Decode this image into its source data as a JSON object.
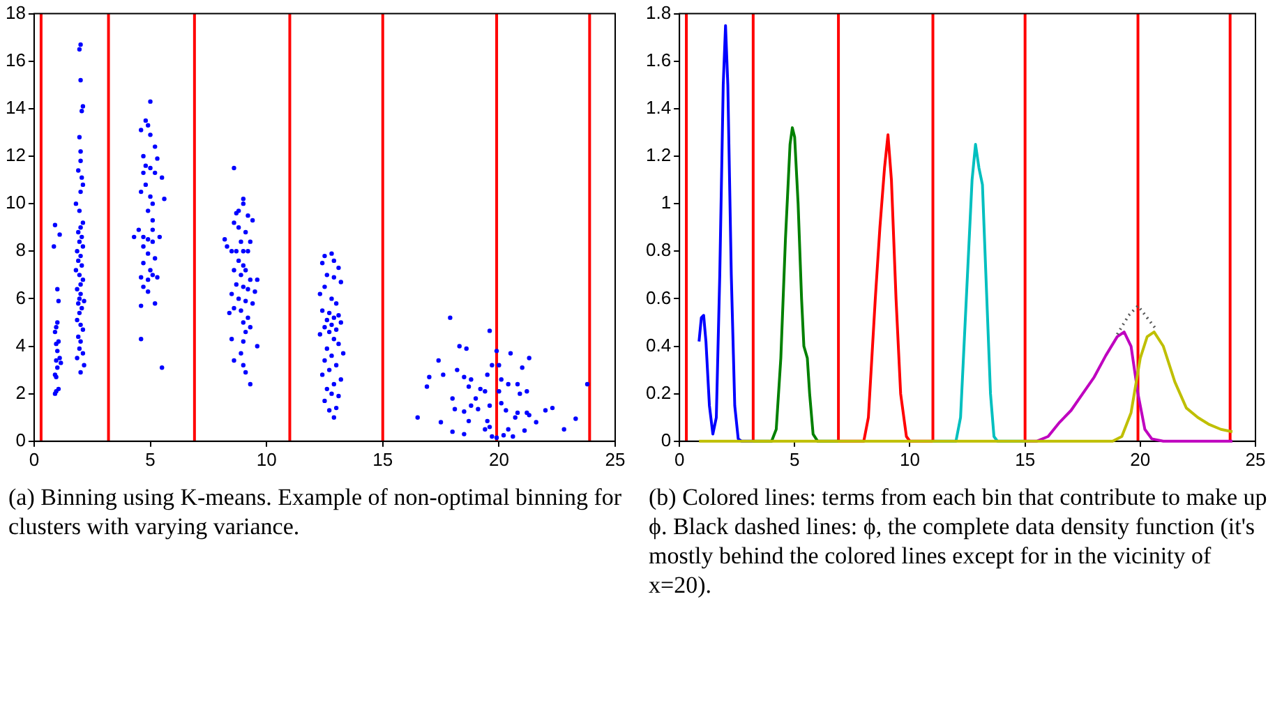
{
  "chart_data": [
    {
      "type": "scatter",
      "xlim": [
        0,
        25
      ],
      "ylim": [
        0,
        18
      ],
      "xticks": [
        0,
        5,
        10,
        15,
        20,
        25
      ],
      "yticks": [
        0,
        2,
        4,
        6,
        8,
        10,
        12,
        14,
        16,
        18
      ],
      "grid": false,
      "legend": false,
      "marker": "circle",
      "series": [
        {
          "color": "#0000ff",
          "x": [
            0.9,
            1.1,
            0.85,
            1.0,
            1.05,
            1.0,
            0.95,
            0.9,
            1.05,
            0.95,
            1.0,
            1.1,
            0.95,
            1.15,
            1.0,
            0.9,
            0.95,
            1.05,
            0.95,
            0.9,
            2.0,
            1.95,
            2.0,
            2.1,
            2.05,
            1.95,
            2.0,
            2.0,
            1.9,
            2.05,
            2.1,
            2.0,
            1.8,
            1.95,
            2.1,
            2.0,
            1.9,
            2.05,
            1.95,
            2.1,
            1.85,
            2.0,
            1.9,
            2.05,
            1.8,
            1.95,
            2.1,
            2.0,
            1.85,
            2.0,
            1.95,
            2.15,
            1.9,
            2.05,
            1.95,
            1.85,
            2.0,
            2.1,
            1.9,
            2.0,
            1.95,
            2.1,
            1.85,
            2.15,
            2.0,
            4.6,
            4.8,
            4.9,
            5.0,
            5.0,
            5.2,
            4.7,
            5.3,
            4.8,
            5.0,
            4.7,
            5.2,
            5.5,
            4.8,
            5.0,
            4.6,
            5.1,
            5.6,
            4.9,
            5.1,
            4.5,
            5.1,
            4.3,
            4.7,
            4.9,
            5.1,
            5.4,
            4.7,
            4.9,
            5.2,
            4.7,
            5.0,
            5.1,
            4.6,
            4.9,
            5.3,
            4.7,
            4.9,
            4.6,
            5.2,
            4.6,
            5.5,
            8.6,
            9.0,
            9.0,
            8.8,
            8.7,
            9.2,
            8.6,
            9.4,
            8.8,
            9.1,
            8.2,
            8.9,
            9.3,
            8.3,
            8.5,
            8.7,
            9.0,
            9.2,
            8.8,
            9.0,
            8.6,
            9.1,
            8.9,
            9.3,
            9.6,
            8.7,
            9.0,
            9.2,
            9.5,
            8.5,
            8.8,
            9.1,
            9.4,
            8.6,
            8.9,
            8.4,
            9.2,
            9.0,
            9.3,
            9.1,
            8.5,
            9.0,
            8.9,
            9.6,
            8.6,
            9.0,
            9.1,
            9.3,
            12.8,
            12.5,
            12.9,
            12.4,
            13.1,
            12.6,
            12.9,
            13.2,
            12.5,
            12.3,
            12.8,
            13.0,
            12.4,
            12.7,
            13.1,
            12.9,
            12.6,
            13.2,
            12.8,
            12.5,
            13.0,
            12.7,
            12.3,
            12.9,
            13.1,
            12.6,
            13.3,
            12.8,
            12.5,
            13.0,
            12.7,
            12.4,
            13.2,
            12.9,
            12.6,
            12.8,
            13.1,
            12.5,
            13.0,
            12.7,
            12.9,
            17.9,
            19.6,
            18.3,
            18.6,
            17.4,
            19.9,
            20.5,
            21.3,
            19.7,
            20.0,
            21.0,
            17.0,
            17.6,
            18.2,
            18.5,
            18.8,
            19.5,
            20.1,
            20.4,
            20.8,
            16.9,
            18.7,
            19.2,
            19.4,
            20.0,
            21.2,
            20.9,
            18.0,
            19.0,
            19.6,
            20.1,
            18.8,
            18.1,
            18.5,
            19.1,
            20.3,
            20.8,
            21.2,
            22.0,
            22.3,
            16.5,
            17.5,
            18.7,
            19.5,
            20.7,
            21.3,
            21.6,
            23.3,
            23.8,
            18.0,
            18.5,
            19.4,
            19.6,
            19.7,
            19.9,
            20.2,
            20.6,
            21.1,
            22.8,
            20.4
          ],
          "values": [
            9.1,
            8.7,
            8.2,
            6.4,
            5.9,
            5.0,
            4.8,
            4.6,
            4.2,
            4.1,
            3.8,
            3.5,
            3.4,
            3.3,
            3.1,
            2.8,
            2.7,
            2.2,
            2.1,
            2.0,
            16.7,
            16.5,
            15.2,
            14.1,
            13.9,
            12.8,
            12.2,
            11.8,
            11.4,
            11.1,
            10.8,
            10.5,
            10.0,
            9.7,
            9.2,
            9.0,
            8.8,
            8.6,
            8.4,
            8.2,
            8.0,
            7.8,
            7.6,
            7.4,
            7.2,
            7.0,
            6.8,
            6.6,
            6.4,
            6.2,
            6.0,
            5.9,
            5.8,
            5.6,
            5.4,
            5.1,
            4.9,
            4.7,
            4.4,
            4.2,
            3.9,
            3.7,
            3.5,
            3.2,
            2.9,
            13.1,
            13.5,
            13.3,
            14.3,
            12.9,
            12.4,
            12.0,
            11.9,
            11.6,
            11.5,
            11.3,
            11.3,
            11.1,
            10.8,
            10.3,
            10.5,
            10.0,
            10.2,
            9.7,
            9.3,
            8.9,
            8.9,
            8.6,
            8.6,
            8.5,
            8.4,
            8.6,
            8.2,
            7.9,
            7.7,
            7.5,
            7.2,
            7.0,
            6.9,
            6.8,
            6.9,
            6.5,
            6.3,
            5.7,
            5.8,
            4.3,
            3.1,
            11.5,
            10.2,
            10.0,
            9.7,
            9.6,
            9.5,
            9.2,
            9.3,
            9.0,
            8.8,
            8.5,
            8.4,
            8.4,
            8.2,
            8.0,
            8.0,
            8.0,
            8.0,
            7.6,
            7.4,
            7.2,
            7.2,
            7.0,
            6.8,
            6.8,
            6.6,
            6.5,
            6.4,
            6.3,
            6.2,
            6.0,
            5.9,
            5.8,
            5.6,
            5.5,
            5.4,
            5.2,
            5.0,
            4.8,
            4.6,
            4.3,
            4.2,
            3.7,
            4.0,
            3.4,
            3.2,
            2.9,
            2.4,
            7.9,
            7.8,
            7.6,
            7.5,
            7.3,
            7.0,
            6.9,
            6.7,
            6.5,
            6.2,
            6.0,
            5.8,
            5.5,
            5.4,
            5.3,
            5.2,
            5.1,
            5.0,
            4.9,
            4.8,
            4.7,
            4.6,
            4.5,
            4.3,
            4.1,
            3.9,
            3.7,
            3.6,
            3.4,
            3.2,
            3.0,
            2.8,
            2.6,
            2.4,
            2.2,
            2.0,
            1.9,
            1.7,
            1.4,
            1.3,
            1.0,
            5.2,
            4.65,
            4.0,
            3.9,
            3.4,
            3.8,
            3.7,
            3.5,
            3.2,
            3.2,
            3.1,
            2.7,
            2.8,
            3.0,
            2.7,
            2.6,
            2.8,
            2.6,
            2.4,
            2.4,
            2.3,
            2.3,
            2.2,
            2.1,
            2.1,
            2.1,
            2.0,
            1.8,
            1.8,
            1.5,
            1.6,
            1.5,
            1.35,
            1.25,
            1.35,
            1.3,
            1.2,
            1.2,
            1.3,
            1.4,
            1.0,
            0.8,
            0.85,
            0.85,
            1.0,
            1.1,
            0.8,
            0.95,
            2.4,
            0.4,
            0.3,
            0.5,
            0.6,
            0.2,
            0.15,
            0.25,
            0.2,
            0.45,
            0.5,
            0.5
          ]
        }
      ],
      "ref_lines": [
        {
          "axis": "x",
          "value": 0.3,
          "color": "#ff0000"
        },
        {
          "axis": "x",
          "value": 3.2,
          "color": "#ff0000"
        },
        {
          "axis": "x",
          "value": 6.9,
          "color": "#ff0000"
        },
        {
          "axis": "x",
          "value": 11,
          "color": "#ff0000"
        },
        {
          "axis": "x",
          "value": 15,
          "color": "#ff0000"
        },
        {
          "axis": "x",
          "value": 19.9,
          "color": "#ff0000"
        },
        {
          "axis": "x",
          "value": 23.9,
          "color": "#ff0000"
        }
      ],
      "annotations": [
        "(a) Binning using K-means. Example of non-optimal binning for clusters with varying variance."
      ]
    },
    {
      "type": "line",
      "xlim": [
        0,
        25
      ],
      "ylim": [
        0,
        1.8
      ],
      "xticks": [
        0,
        5,
        10,
        15,
        20,
        25
      ],
      "yticks": [
        0,
        0.2,
        0.4,
        0.6,
        0.8,
        1,
        1.2,
        1.4,
        1.6,
        1.8
      ],
      "grid": false,
      "legend": false,
      "marker": "none",
      "series": [
        {
          "color": "#0000ff",
          "x": [
            0.85,
            0.95,
            1.05,
            1.15,
            1.3,
            1.45,
            1.6,
            1.75,
            1.9,
            2.0,
            2.1,
            2.25,
            2.4,
            2.55,
            2.7,
            3.2
          ],
          "values": [
            0.42,
            0.52,
            0.53,
            0.42,
            0.15,
            0.03,
            0.1,
            0.7,
            1.5,
            1.75,
            1.5,
            0.7,
            0.15,
            0.01,
            0,
            0
          ]
        },
        {
          "color": "#008000",
          "x": [
            3.2,
            4.0,
            4.2,
            4.4,
            4.6,
            4.8,
            4.9,
            5.0,
            5.15,
            5.3,
            5.4,
            5.55,
            5.65,
            5.8,
            6.0,
            6.9
          ],
          "values": [
            0,
            0,
            0.05,
            0.35,
            0.85,
            1.25,
            1.32,
            1.28,
            1.0,
            0.6,
            0.4,
            0.35,
            0.2,
            0.03,
            0,
            0
          ]
        },
        {
          "color": "#ff0000",
          "x": [
            6.9,
            8.0,
            8.2,
            8.5,
            8.7,
            8.9,
            9.05,
            9.2,
            9.4,
            9.6,
            9.85,
            10.0,
            11.0
          ],
          "values": [
            0,
            0,
            0.1,
            0.6,
            0.9,
            1.15,
            1.29,
            1.1,
            0.6,
            0.2,
            0.02,
            0,
            0
          ]
        },
        {
          "color": "#00bfbf",
          "x": [
            11.0,
            12.0,
            12.2,
            12.5,
            12.7,
            12.85,
            13.0,
            13.15,
            13.3,
            13.5,
            13.65,
            13.8,
            15.0
          ],
          "values": [
            0,
            0,
            0.1,
            0.7,
            1.1,
            1.25,
            1.15,
            1.08,
            0.7,
            0.2,
            0.02,
            0,
            0
          ]
        },
        {
          "color": "#bf00bf",
          "x": [
            15.0,
            15.5,
            16.0,
            16.5,
            17.0,
            17.5,
            18.0,
            18.5,
            19.0,
            19.3,
            19.6,
            19.9,
            20.2,
            20.5,
            21.0,
            24.0
          ],
          "values": [
            0,
            0,
            0.02,
            0.08,
            0.13,
            0.2,
            0.27,
            0.36,
            0.44,
            0.46,
            0.4,
            0.2,
            0.05,
            0.01,
            0,
            0
          ]
        },
        {
          "color": "#bfbf00",
          "x": [
            0.85,
            18.8,
            19.2,
            19.6,
            20.0,
            20.3,
            20.6,
            21.0,
            21.5,
            22.0,
            22.5,
            23.0,
            23.5,
            24.0
          ],
          "values": [
            0,
            0,
            0.02,
            0.12,
            0.35,
            0.44,
            0.46,
            0.4,
            0.25,
            0.14,
            0.1,
            0.07,
            0.05,
            0.04
          ]
        },
        {
          "color": "#555555",
          "line_style": "dotted",
          "x": [
            19.0,
            19.5,
            19.9,
            20.3,
            20.7
          ],
          "values": [
            0.45,
            0.53,
            0.57,
            0.52,
            0.47
          ]
        }
      ],
      "ref_lines": [
        {
          "axis": "x",
          "value": 0.3,
          "color": "#ff0000"
        },
        {
          "axis": "x",
          "value": 3.2,
          "color": "#ff0000"
        },
        {
          "axis": "x",
          "value": 6.9,
          "color": "#ff0000"
        },
        {
          "axis": "x",
          "value": 11,
          "color": "#ff0000"
        },
        {
          "axis": "x",
          "value": 15,
          "color": "#ff0000"
        },
        {
          "axis": "x",
          "value": 19.9,
          "color": "#ff0000"
        },
        {
          "axis": "x",
          "value": 23.9,
          "color": "#ff0000"
        }
      ],
      "annotations": [
        "(b) Colored lines: terms from each bin that contribute to make up ϕ. Black dashed lines: ϕ, the complete data density function (it's mostly behind the colored lines except for in the vicinity of x=20)."
      ]
    }
  ]
}
